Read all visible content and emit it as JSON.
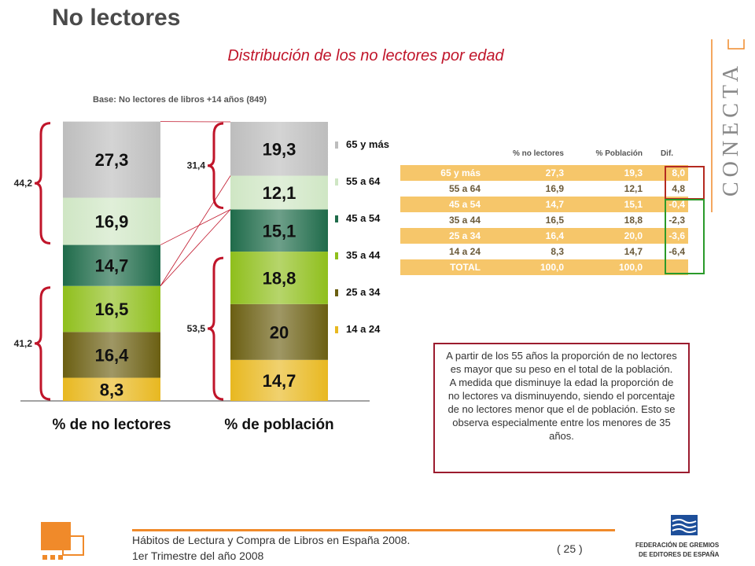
{
  "title": "No lectores",
  "subtitle": "Distribución de los no lectores por edad",
  "base_note": "Base: No lectores de libros +14 años (849)",
  "chart_data": {
    "type": "bar",
    "stacked": true,
    "categories": [
      "% de no lectores",
      "% de población"
    ],
    "series": [
      {
        "name": "14 a 24",
        "values": [
          8.3,
          14.7
        ],
        "labels": [
          "8,3",
          "14,7"
        ],
        "color": "#e8b820"
      },
      {
        "name": "25 a 34",
        "values": [
          16.4,
          20.0
        ],
        "labels": [
          "16,4",
          "20"
        ],
        "color": "#6b5f12"
      },
      {
        "name": "35 a 44",
        "values": [
          16.5,
          18.8
        ],
        "labels": [
          "16,5",
          "18,8"
        ],
        "color": "#8fbf1c"
      },
      {
        "name": "45 a 54",
        "values": [
          14.7,
          15.1
        ],
        "labels": [
          "14,7",
          "15,1"
        ],
        "color": "#1f6b4a"
      },
      {
        "name": "55 a 64",
        "values": [
          16.9,
          12.1
        ],
        "labels": [
          "16,9",
          "12,1"
        ],
        "color": "#cfe6c4"
      },
      {
        "name": "65 y más",
        "values": [
          27.3,
          19.3
        ],
        "labels": [
          "27,3",
          "19,3"
        ],
        "color": "#bdbdbd"
      }
    ],
    "brace_labels": {
      "left_upper": "44,2",
      "left_lower": "41,2",
      "right_upper": "31,4",
      "right_lower": "53,5"
    },
    "legend_order": [
      "65 y más",
      "55 a 64",
      "45 a 54",
      "35 a 44",
      "25 a 34",
      "14 a 24"
    ],
    "ylim": [
      0,
      100
    ]
  },
  "table": {
    "headers": [
      "",
      "% no lectores",
      "% Población",
      "Dif."
    ],
    "rows": [
      [
        "65 y más",
        "27,3",
        "19,3",
        "8,0"
      ],
      [
        "55 a 64",
        "16,9",
        "12,1",
        "4,8"
      ],
      [
        "45 a 54",
        "14,7",
        "15,1",
        "-0,4"
      ],
      [
        "35 a 44",
        "16,5",
        "18,8",
        "-2,3"
      ],
      [
        "25 a 34",
        "16,4",
        "20,0",
        "-3,6"
      ],
      [
        "14 a 24",
        "8,3",
        "14,7",
        "-6,4"
      ],
      [
        "TOTAL",
        "100,0",
        "100,0",
        ""
      ]
    ]
  },
  "note": "A partir de los 55 años la proporción de no lectores es mayor que su peso en el total de la población. A medida que disminuye la edad la proporción de no lectores va disminuyendo, siendo el porcentaje de no lectores menor que el de población. Esto se observa especialmente entre los menores de 35 años.",
  "footer": {
    "line1": "Hábitos de Lectura y Compra de Libros en España 2008.",
    "line2": "1er Trimestre del año 2008",
    "page": "( 25 )"
  },
  "brand": {
    "logo_text": "CONECTA",
    "fge_line1": "FEDERACIÓN DE GREMIOS",
    "fge_line2": "DE EDITORES DE ESPAÑA"
  },
  "colors": {
    "accent_red": "#c0152a",
    "orange": "#f08a2a",
    "table_fill": "#f6c66a",
    "box_red": "#9b1b2e",
    "box_green": "#2a9a2a"
  }
}
